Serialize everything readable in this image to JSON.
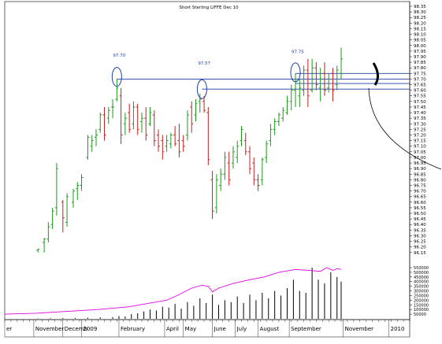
{
  "chart_data": {
    "type": "ohlc",
    "title": "Short Sterling LIFFE Dec 10",
    "colors": {
      "up": "#1a9a1a",
      "down": "#c81e1e",
      "annotation": "#1f3fa8",
      "volume_oi_line": "#e000e0",
      "volume_bars": "#000000"
    },
    "y_axis": {
      "position": "right",
      "ylim": [
        96.05,
        98.35
      ],
      "ticks": [
        "98.35",
        "98.30",
        "98.25",
        "98.20",
        "98.15",
        "98.10",
        "98.05",
        "98.00",
        "97.95",
        "97.90",
        "97.85",
        "97.80",
        "97.75",
        "97.70",
        "97.65",
        "97.60",
        "97.55",
        "97.50",
        "97.45",
        "97.40",
        "97.35",
        "97.30",
        "97.25",
        "97.20",
        "97.15",
        "97.10",
        "97.05",
        "97.00",
        "96.95",
        "96.90",
        "96.85",
        "96.80",
        "96.75",
        "96.70",
        "96.65",
        "96.60",
        "96.55",
        "96.50",
        "96.45",
        "96.40",
        "96.35",
        "96.30",
        "96.25",
        "96.20",
        "96.15"
      ]
    },
    "x_axis": {
      "labels": [
        {
          "label": "er",
          "x": 0
        },
        {
          "label": "November",
          "x": 14
        },
        {
          "label": "Decemb",
          "x": 28
        },
        {
          "label": "2009",
          "x": 37
        },
        {
          "label": "February",
          "x": 55
        },
        {
          "label": "April",
          "x": 77
        },
        {
          "label": "May",
          "x": 86
        },
        {
          "label": "June",
          "x": 100
        },
        {
          "label": "July",
          "x": 111
        },
        {
          "label": "August",
          "x": 122
        },
        {
          "label": "September",
          "x": 137
        },
        {
          "label": "November",
          "x": 163
        },
        {
          "label": "2010",
          "x": 185
        }
      ],
      "xlim": [
        0,
        195
      ]
    },
    "annotations": [
      {
        "text": "97.70",
        "x": 54,
        "y": 97.9
      },
      {
        "text": "97.57",
        "x": 95,
        "y": 97.83
      },
      {
        "text": "97.75",
        "x": 140,
        "y": 97.93
      }
    ],
    "resistance_lines": [
      {
        "from_x": 54,
        "y": 97.7
      },
      {
        "from_x": 95,
        "y": 97.61
      },
      {
        "from_x": 140,
        "y": 97.75
      },
      {
        "from_x": 140,
        "y": 97.66
      }
    ],
    "circles": [
      {
        "x": 54,
        "y": 97.72
      },
      {
        "x": 95,
        "y": 97.61
      },
      {
        "x": 140,
        "y": 97.76
      }
    ],
    "bars": [
      {
        "x": 16,
        "o": 96.17,
        "h": 96.18,
        "l": 96.15,
        "c": 96.18
      },
      {
        "x": 19,
        "o": 96.24,
        "h": 96.28,
        "l": 96.15,
        "c": 96.27
      },
      {
        "x": 21,
        "o": 96.27,
        "h": 96.42,
        "l": 96.24,
        "c": 96.38
      },
      {
        "x": 23,
        "o": 96.4,
        "h": 96.55,
        "l": 96.36,
        "c": 96.52
      },
      {
        "x": 25,
        "o": 96.55,
        "h": 96.95,
        "l": 96.48,
        "c": 96.9
      },
      {
        "x": 28,
        "o": 96.6,
        "h": 96.62,
        "l": 96.33,
        "c": 96.46
      },
      {
        "x": 30,
        "o": 96.42,
        "h": 96.68,
        "l": 96.38,
        "c": 96.65
      },
      {
        "x": 33,
        "o": 96.6,
        "h": 96.72,
        "l": 96.55,
        "c": 96.7
      },
      {
        "x": 35,
        "o": 96.72,
        "h": 96.78,
        "l": 96.62,
        "c": 96.75
      },
      {
        "x": 37,
        "o": 96.75,
        "h": 96.85,
        "l": 96.7,
        "c": 96.82
      },
      {
        "x": 40,
        "o": 97.0,
        "h": 97.2,
        "l": 96.98,
        "c": 97.18
      },
      {
        "x": 42,
        "o": 97.1,
        "h": 97.2,
        "l": 97.05,
        "c": 97.15
      },
      {
        "x": 44,
        "o": 97.18,
        "h": 97.25,
        "l": 97.1,
        "c": 97.2
      },
      {
        "x": 46,
        "o": 97.25,
        "h": 97.4,
        "l": 97.22,
        "c": 97.38
      },
      {
        "x": 48,
        "o": 97.38,
        "h": 97.45,
        "l": 97.15,
        "c": 97.2
      },
      {
        "x": 50,
        "o": 97.35,
        "h": 97.45,
        "l": 97.3,
        "c": 97.42
      },
      {
        "x": 52,
        "o": 97.45,
        "h": 97.52,
        "l": 97.35,
        "c": 97.45
      },
      {
        "x": 54,
        "o": 97.52,
        "h": 97.7,
        "l": 97.5,
        "c": 97.62
      },
      {
        "x": 56,
        "o": 97.55,
        "h": 97.62,
        "l": 97.12,
        "c": 97.2
      },
      {
        "x": 58,
        "o": 97.3,
        "h": 97.4,
        "l": 97.2,
        "c": 97.35
      },
      {
        "x": 60,
        "o": 97.4,
        "h": 97.48,
        "l": 97.22,
        "c": 97.25
      },
      {
        "x": 62,
        "o": 97.3,
        "h": 97.5,
        "l": 97.25,
        "c": 97.45
      },
      {
        "x": 64,
        "o": 97.45,
        "h": 97.48,
        "l": 97.2,
        "c": 97.25
      },
      {
        "x": 66,
        "o": 97.32,
        "h": 97.4,
        "l": 97.22,
        "c": 97.35
      },
      {
        "x": 68,
        "o": 97.35,
        "h": 97.45,
        "l": 97.15,
        "c": 97.2
      },
      {
        "x": 70,
        "o": 97.3,
        "h": 97.45,
        "l": 97.28,
        "c": 97.4
      },
      {
        "x": 72,
        "o": 97.38,
        "h": 97.42,
        "l": 97.1,
        "c": 97.15
      },
      {
        "x": 74,
        "o": 97.2,
        "h": 97.25,
        "l": 97.05,
        "c": 97.1
      },
      {
        "x": 76,
        "o": 97.15,
        "h": 97.2,
        "l": 96.98,
        "c": 97.05
      },
      {
        "x": 78,
        "o": 97.1,
        "h": 97.2,
        "l": 97.05,
        "c": 97.15
      },
      {
        "x": 80,
        "o": 97.12,
        "h": 97.22,
        "l": 97.08,
        "c": 97.2
      },
      {
        "x": 82,
        "o": 97.2,
        "h": 97.28,
        "l": 97.1,
        "c": 97.12
      },
      {
        "x": 84,
        "o": 97.15,
        "h": 97.3,
        "l": 97.0,
        "c": 97.05
      },
      {
        "x": 86,
        "o": 97.15,
        "h": 97.2,
        "l": 97.05,
        "c": 97.1
      },
      {
        "x": 88,
        "o": 97.2,
        "h": 97.42,
        "l": 97.15,
        "c": 97.38
      },
      {
        "x": 90,
        "o": 97.45,
        "h": 97.5,
        "l": 97.22,
        "c": 97.3
      },
      {
        "x": 92,
        "o": 97.38,
        "h": 97.52,
        "l": 97.32,
        "c": 97.48
      },
      {
        "x": 94,
        "o": 97.5,
        "h": 97.57,
        "l": 97.4,
        "c": 97.52
      },
      {
        "x": 96,
        "o": 97.5,
        "h": 97.55,
        "l": 97.4,
        "c": 97.42
      },
      {
        "x": 98,
        "o": 97.4,
        "h": 97.45,
        "l": 96.93,
        "c": 96.98
      },
      {
        "x": 100,
        "o": 96.8,
        "h": 96.88,
        "l": 96.45,
        "c": 96.52
      },
      {
        "x": 102,
        "o": 96.55,
        "h": 96.85,
        "l": 96.5,
        "c": 96.8
      },
      {
        "x": 104,
        "o": 96.75,
        "h": 96.9,
        "l": 96.7,
        "c": 96.85
      },
      {
        "x": 106,
        "o": 96.85,
        "h": 97.05,
        "l": 96.8,
        "c": 97.0
      },
      {
        "x": 108,
        "o": 96.95,
        "h": 97.05,
        "l": 96.75,
        "c": 96.8
      },
      {
        "x": 110,
        "o": 96.95,
        "h": 97.1,
        "l": 96.9,
        "c": 97.05
      },
      {
        "x": 112,
        "o": 97.0,
        "h": 97.15,
        "l": 96.95,
        "c": 97.1
      },
      {
        "x": 114,
        "o": 97.15,
        "h": 97.28,
        "l": 97.1,
        "c": 97.25
      },
      {
        "x": 116,
        "o": 97.15,
        "h": 97.22,
        "l": 97.02,
        "c": 97.05
      },
      {
        "x": 118,
        "o": 97.05,
        "h": 97.1,
        "l": 96.85,
        "c": 96.9
      },
      {
        "x": 120,
        "o": 96.95,
        "h": 97.0,
        "l": 96.75,
        "c": 96.8
      },
      {
        "x": 122,
        "o": 96.8,
        "h": 96.85,
        "l": 96.7,
        "c": 96.75
      },
      {
        "x": 124,
        "o": 96.8,
        "h": 97.0,
        "l": 96.75,
        "c": 96.98
      },
      {
        "x": 126,
        "o": 97.0,
        "h": 97.15,
        "l": 96.95,
        "c": 97.12
      },
      {
        "x": 128,
        "o": 97.15,
        "h": 97.3,
        "l": 97.1,
        "c": 97.25
      },
      {
        "x": 130,
        "o": 97.25,
        "h": 97.35,
        "l": 97.2,
        "c": 97.32
      },
      {
        "x": 132,
        "o": 97.32,
        "h": 97.4,
        "l": 97.28,
        "c": 97.38
      },
      {
        "x": 134,
        "o": 97.35,
        "h": 97.45,
        "l": 97.32,
        "c": 97.42
      },
      {
        "x": 136,
        "o": 97.4,
        "h": 97.55,
        "l": 97.38,
        "c": 97.5
      },
      {
        "x": 138,
        "o": 97.5,
        "h": 97.65,
        "l": 97.42,
        "c": 97.6
      },
      {
        "x": 140,
        "o": 97.6,
        "h": 97.75,
        "l": 97.45,
        "c": 97.68
      },
      {
        "x": 142,
        "o": 97.55,
        "h": 97.7,
        "l": 97.45,
        "c": 97.62
      },
      {
        "x": 144,
        "o": 97.6,
        "h": 97.82,
        "l": 97.55,
        "c": 97.78
      },
      {
        "x": 146,
        "o": 97.78,
        "h": 97.88,
        "l": 97.45,
        "c": 97.55
      },
      {
        "x": 148,
        "o": 97.6,
        "h": 97.88,
        "l": 97.58,
        "c": 97.8
      },
      {
        "x": 150,
        "o": 97.8,
        "h": 97.85,
        "l": 97.6,
        "c": 97.65
      },
      {
        "x": 152,
        "o": 97.62,
        "h": 97.8,
        "l": 97.5,
        "c": 97.7
      },
      {
        "x": 154,
        "o": 97.75,
        "h": 97.85,
        "l": 97.55,
        "c": 97.6
      },
      {
        "x": 156,
        "o": 97.62,
        "h": 97.75,
        "l": 97.58,
        "c": 97.7
      },
      {
        "x": 158,
        "o": 97.75,
        "h": 97.8,
        "l": 97.5,
        "c": 97.6
      },
      {
        "x": 160,
        "o": 97.65,
        "h": 97.82,
        "l": 97.6,
        "c": 97.78
      },
      {
        "x": 162,
        "o": 97.75,
        "h": 97.98,
        "l": 97.7,
        "c": 97.88
      }
    ],
    "volume_panel": {
      "ylim": [
        0,
        550000
      ],
      "ticks": [
        "550000",
        "500000",
        "450000",
        "400000",
        "350000",
        "300000",
        "250000",
        "200000",
        "150000",
        "100000",
        "50000"
      ],
      "volume": [
        {
          "x": 16,
          "v": 4000
        },
        {
          "x": 22,
          "v": 6000
        },
        {
          "x": 28,
          "v": 8000
        },
        {
          "x": 34,
          "v": 9000
        },
        {
          "x": 40,
          "v": 12000
        },
        {
          "x": 46,
          "v": 15000
        },
        {
          "x": 52,
          "v": 18000
        },
        {
          "x": 55,
          "v": 30000
        },
        {
          "x": 58,
          "v": 25000
        },
        {
          "x": 61,
          "v": 50000
        },
        {
          "x": 64,
          "v": 60000
        },
        {
          "x": 67,
          "v": 80000
        },
        {
          "x": 70,
          "v": 100000
        },
        {
          "x": 73,
          "v": 90000
        },
        {
          "x": 76,
          "v": 130000
        },
        {
          "x": 79,
          "v": 120000
        },
        {
          "x": 82,
          "v": 160000
        },
        {
          "x": 85,
          "v": 110000
        },
        {
          "x": 88,
          "v": 180000
        },
        {
          "x": 91,
          "v": 140000
        },
        {
          "x": 94,
          "v": 220000
        },
        {
          "x": 97,
          "v": 170000
        },
        {
          "x": 100,
          "v": 260000
        },
        {
          "x": 103,
          "v": 150000
        },
        {
          "x": 106,
          "v": 200000
        },
        {
          "x": 109,
          "v": 180000
        },
        {
          "x": 112,
          "v": 240000
        },
        {
          "x": 115,
          "v": 170000
        },
        {
          "x": 118,
          "v": 260000
        },
        {
          "x": 121,
          "v": 200000
        },
        {
          "x": 124,
          "v": 280000
        },
        {
          "x": 127,
          "v": 220000
        },
        {
          "x": 130,
          "v": 300000
        },
        {
          "x": 133,
          "v": 250000
        },
        {
          "x": 136,
          "v": 330000
        },
        {
          "x": 139,
          "v": 420000
        },
        {
          "x": 142,
          "v": 300000
        },
        {
          "x": 145,
          "v": 280000
        },
        {
          "x": 148,
          "v": 550000
        },
        {
          "x": 151,
          "v": 420000
        },
        {
          "x": 154,
          "v": 380000
        },
        {
          "x": 157,
          "v": 500000
        },
        {
          "x": 160,
          "v": 450000
        },
        {
          "x": 162,
          "v": 400000
        }
      ],
      "open_interest": [
        {
          "x": 0,
          "v": 50000
        },
        {
          "x": 15,
          "v": 60000
        },
        {
          "x": 30,
          "v": 80000
        },
        {
          "x": 45,
          "v": 100000
        },
        {
          "x": 60,
          "v": 130000
        },
        {
          "x": 70,
          "v": 170000
        },
        {
          "x": 78,
          "v": 200000
        },
        {
          "x": 84,
          "v": 260000
        },
        {
          "x": 90,
          "v": 330000
        },
        {
          "x": 95,
          "v": 360000
        },
        {
          "x": 98,
          "v": 350000
        },
        {
          "x": 100,
          "v": 290000
        },
        {
          "x": 103,
          "v": 330000
        },
        {
          "x": 110,
          "v": 380000
        },
        {
          "x": 118,
          "v": 420000
        },
        {
          "x": 125,
          "v": 450000
        },
        {
          "x": 132,
          "v": 500000
        },
        {
          "x": 140,
          "v": 530000
        },
        {
          "x": 147,
          "v": 520000
        },
        {
          "x": 152,
          "v": 510000
        },
        {
          "x": 155,
          "v": 550000
        },
        {
          "x": 158,
          "v": 520000
        },
        {
          "x": 160,
          "v": 540000
        },
        {
          "x": 162,
          "v": 530000
        }
      ]
    }
  }
}
